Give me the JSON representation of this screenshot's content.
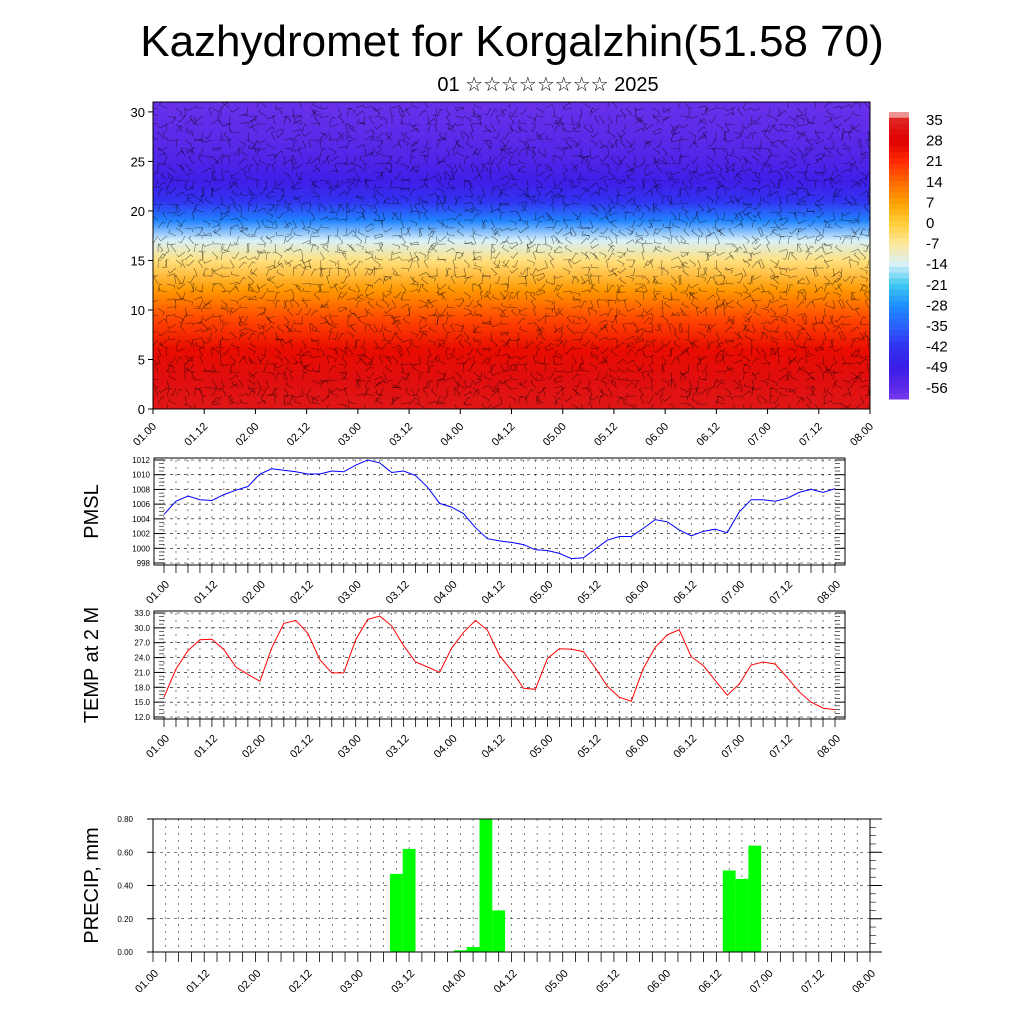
{
  "header": {
    "title": "Kazhydromet for Korgalzhin(51.58 70)",
    "subtitle": "01 ☆☆☆☆☆☆☆☆ 2025"
  },
  "time_ticks": [
    "01.00",
    "01.12",
    "02.00",
    "02.12",
    "03.00",
    "03.12",
    "04.00",
    "04.12",
    "05.00",
    "05.12",
    "06.00",
    "06.12",
    "07.00",
    "07.12",
    "08.00"
  ],
  "chart_data": [
    {
      "type": "heatmap",
      "xlabel": "",
      "ylabel": "",
      "x_ticks": [
        "01.00",
        "01.12",
        "02.00",
        "02.12",
        "03.00",
        "03.12",
        "04.00",
        "04.12",
        "05.00",
        "05.12",
        "06.00",
        "06.12",
        "07.00",
        "07.12",
        "08.00"
      ],
      "y_ticks": [
        0,
        5,
        10,
        15,
        20,
        25,
        30
      ],
      "ylim": [
        0,
        31
      ],
      "colorbar": {
        "labels": [
          "35",
          "28",
          "21",
          "14",
          "7",
          "0",
          "-7",
          "-14",
          "-21",
          "-28",
          "-35",
          "-42",
          "-49",
          "-56"
        ],
        "range": [
          -60,
          38
        ]
      },
      "value_profile_by_height": [
        [
          0,
          33
        ],
        [
          3,
          31
        ],
        [
          6,
          26
        ],
        [
          9,
          18
        ],
        [
          12,
          8
        ],
        [
          15,
          -5
        ],
        [
          17,
          -14
        ],
        [
          19,
          -30
        ],
        [
          21,
          -42
        ],
        [
          23,
          -50
        ],
        [
          26,
          -55
        ],
        [
          31,
          -58
        ]
      ]
    },
    {
      "type": "line",
      "ylabel": "PMSL",
      "ylim": [
        998,
        1012
      ],
      "y_ticks": [
        "998",
        "1000",
        "1002",
        "1004",
        "1006",
        "1008",
        "1010",
        "1012"
      ],
      "x_ticks": [
        "01.00",
        "01.12",
        "02.00",
        "02.12",
        "03.00",
        "03.12",
        "04.00",
        "04.12",
        "05.00",
        "05.12",
        "06.00",
        "06.12",
        "07.00",
        "07.12",
        "08.00"
      ],
      "x_hours": [
        0,
        3,
        6,
        9,
        12,
        15,
        18,
        21,
        24,
        27,
        30,
        33,
        36,
        39,
        42,
        45,
        48,
        51,
        54,
        57,
        60,
        63,
        66,
        69,
        72,
        75,
        78,
        81,
        84,
        87,
        90,
        93,
        96,
        99,
        102,
        105,
        108,
        111,
        114,
        117,
        120,
        123,
        126,
        129,
        132,
        135,
        138,
        141,
        144,
        147,
        150,
        153,
        156,
        159,
        162,
        165,
        168
      ],
      "series": [
        {
          "color": "#0000ff",
          "values": [
            1004.6,
            1006.4,
            1007.1,
            1006.6,
            1006.5,
            1007.3,
            1007.9,
            1008.4,
            1010.1,
            1010.8,
            1010.6,
            1010.4,
            1010.1,
            1010.1,
            1010.5,
            1010.4,
            1011.3,
            1012.0,
            1011.6,
            1010.3,
            1010.5,
            1009.9,
            1008.3,
            1006.1,
            1005.6,
            1004.7,
            1002.8,
            1001.3,
            1001.0,
            1000.8,
            1000.5,
            999.8,
            999.7,
            999.3,
            998.6,
            998.7,
            999.9,
            1001.1,
            1001.6,
            1001.6,
            1002.7,
            1003.9,
            1003.6,
            1002.5,
            1001.7,
            1002.3,
            1002.6,
            1002.1,
            1004.9,
            1006.6,
            1006.6,
            1006.4,
            1006.8,
            1007.6,
            1008.0,
            1007.6,
            1008.1
          ]
        }
      ]
    },
    {
      "type": "line",
      "ylabel": "TEMP at 2 M",
      "ylim": [
        12,
        33
      ],
      "y_ticks": [
        "12.0",
        "15.0",
        "18.0",
        "21.0",
        "24.0",
        "27.0",
        "30.0",
        "33.0"
      ],
      "x_ticks": [
        "01.00",
        "01.12",
        "02.00",
        "02.12",
        "03.00",
        "03.12",
        "04.00",
        "04.12",
        "05.00",
        "05.12",
        "06.00",
        "06.12",
        "07.00",
        "07.12",
        "08.00"
      ],
      "x_hours": [
        0,
        3,
        6,
        9,
        12,
        15,
        18,
        21,
        24,
        27,
        30,
        33,
        36,
        39,
        42,
        45,
        48,
        51,
        54,
        57,
        60,
        63,
        66,
        69,
        72,
        75,
        78,
        81,
        84,
        87,
        90,
        93,
        96,
        99,
        102,
        105,
        108,
        111,
        114,
        117,
        120,
        123,
        126,
        129,
        132,
        135,
        138,
        141,
        144,
        147,
        150,
        153,
        156,
        159,
        162,
        165,
        168
      ],
      "series": [
        {
          "color": "#ff0000",
          "values": [
            16.0,
            21.7,
            25.4,
            27.6,
            27.7,
            25.6,
            22.1,
            20.6,
            19.2,
            26.0,
            30.9,
            31.5,
            28.9,
            23.6,
            20.9,
            20.9,
            27.6,
            31.7,
            32.4,
            30.4,
            26.4,
            23.1,
            22.1,
            21.0,
            25.9,
            29.1,
            31.5,
            29.5,
            24.4,
            21.4,
            17.8,
            17.6,
            23.8,
            25.8,
            25.7,
            25.2,
            21.9,
            18.2,
            16.0,
            15.2,
            21.8,
            26.1,
            28.6,
            29.6,
            24.2,
            22.4,
            19.4,
            16.4,
            18.6,
            22.5,
            23.1,
            22.7,
            20.0,
            17.1,
            15.0,
            13.8,
            13.5
          ]
        }
      ]
    },
    {
      "type": "bar",
      "ylabel": "PRECIP, mm",
      "ylim": [
        0,
        0.8
      ],
      "y_ticks": [
        "0.00",
        "0.20",
        "0.40",
        "0.60",
        "0.80"
      ],
      "x_ticks": [
        "01.00",
        "01.12",
        "02.00",
        "02.12",
        "03.00",
        "03.12",
        "04.00",
        "04.12",
        "05.00",
        "05.12",
        "06.00",
        "06.12",
        "07.00",
        "07.12",
        "08.00"
      ],
      "bar_hours": [
        57,
        60,
        72,
        75,
        78,
        81,
        135,
        138,
        141
      ],
      "values": [
        0.47,
        0.62,
        0.01,
        0.03,
        0.8,
        0.25,
        0.49,
        0.44,
        0.64
      ],
      "bar_color": "#00ff00"
    }
  ]
}
